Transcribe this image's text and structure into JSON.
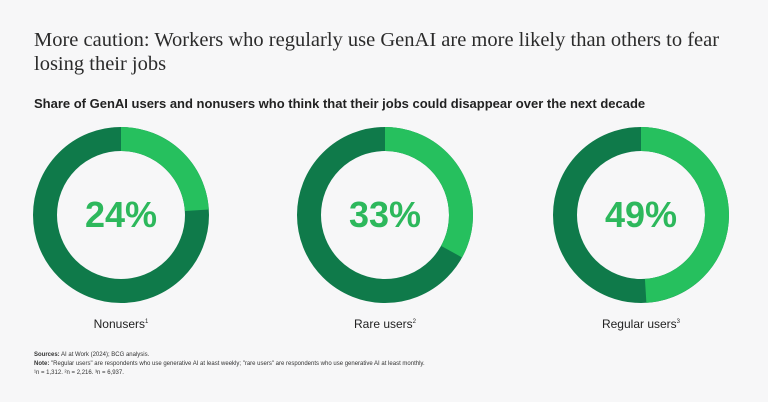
{
  "header": {
    "title": "More caution: Workers who regularly use GenAI are more likely than others to fear losing their jobs",
    "subtitle": "Share of GenAI users and nonusers who think that their jobs could disappear over the next decade"
  },
  "colors": {
    "filled": "#26c05e",
    "remainder": "#0f7a4a",
    "label": "#2db85c"
  },
  "chart_data": {
    "type": "pie",
    "style": "donut",
    "title": "Share of GenAI users and nonusers who think that their jobs could disappear over the next decade",
    "categories": [
      {
        "name": "Nonusers",
        "footnote": "1",
        "value": 24,
        "label": "24%"
      },
      {
        "name": "Rare users",
        "footnote": "2",
        "value": 33,
        "label": "33%"
      },
      {
        "name": "Regular users",
        "footnote": "3",
        "value": 49,
        "label": "49%"
      }
    ]
  },
  "footer": {
    "sources_label": "Sources:",
    "sources_text": "AI at Work (2024); BCG analysis.",
    "note_label": "Note:",
    "note_text": "\"Regular users\" are respondents who use generative AI at least weekly; \"rare users\" are respondents who use generative AI at least monthly.",
    "sample_sizes": "¹n = 1,312. ²n = 2,216. ³n = 6,937."
  }
}
